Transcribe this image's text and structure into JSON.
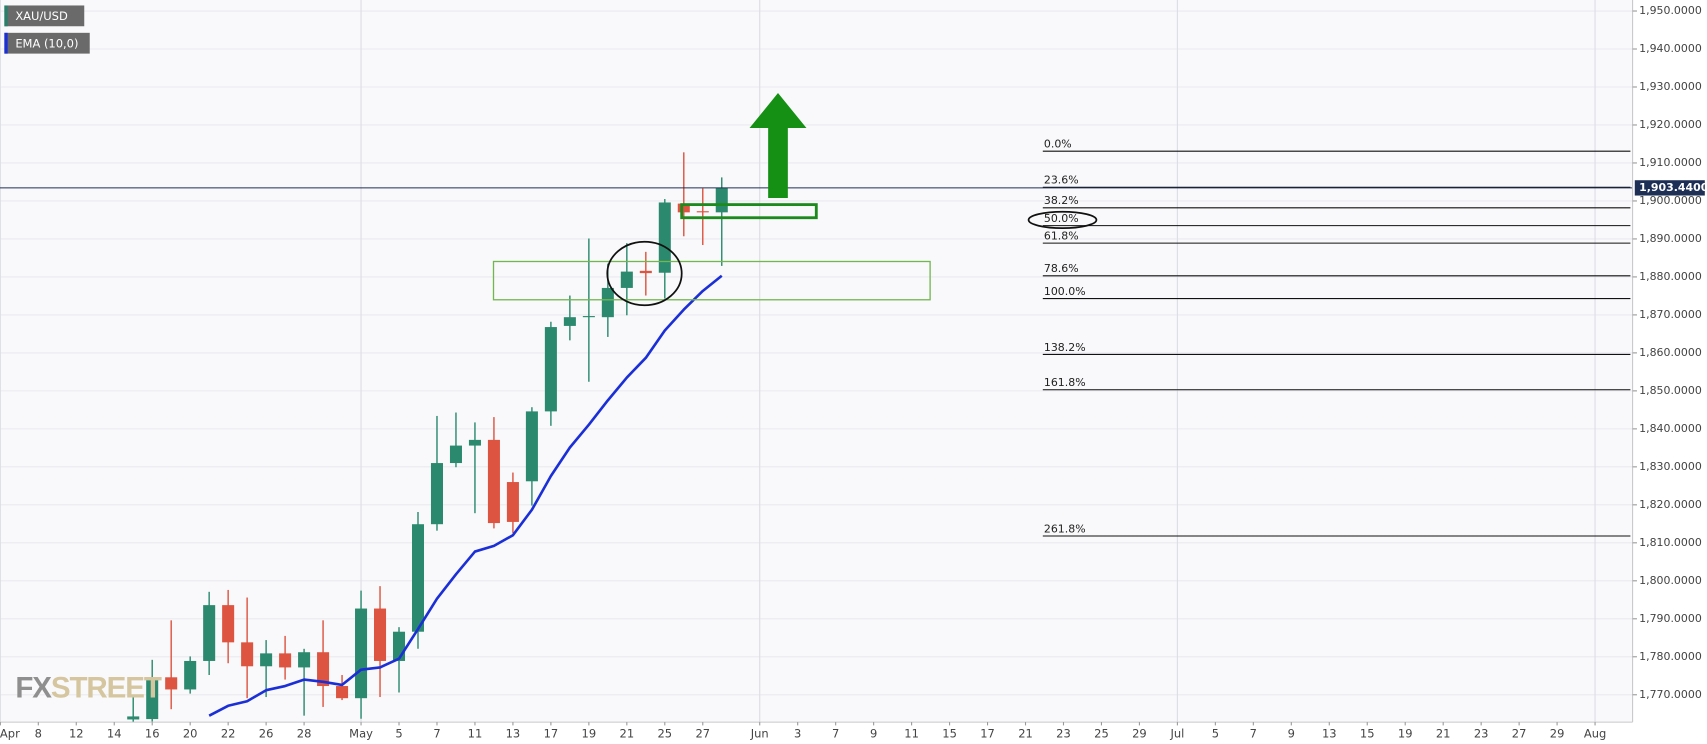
{
  "chart_data": {
    "type": "candlestick",
    "categories": [
      "Apr",
      null,
      "8",
      null,
      "12",
      null,
      "14",
      null,
      "16",
      null,
      "20",
      null,
      "22",
      null,
      "26",
      null,
      "28",
      null,
      null,
      "May",
      null,
      "5",
      null,
      "7",
      null,
      "11",
      null,
      "13",
      null,
      "17",
      null,
      "19",
      null,
      "21",
      null,
      "25",
      null,
      "27",
      null,
      null,
      "Jun",
      null,
      "3",
      null,
      "7",
      null,
      "9",
      null,
      "11",
      null,
      "15",
      null,
      "17",
      null,
      "21",
      null,
      "23",
      null,
      "25",
      null,
      "29",
      null,
      "Jul",
      null,
      "5",
      null,
      "7",
      null,
      "9",
      null,
      "13",
      null,
      "15",
      null,
      "19",
      null,
      "21",
      null,
      "23",
      null,
      "27",
      null,
      "29",
      null,
      "Aug"
    ],
    "series": [
      {
        "name": "XAU/USD",
        "type": "candlestick",
        "color": "#26806a",
        "up_color": "#2b8a6e",
        "down_color": "#dd5440",
        "open": [
          null,
          null,
          null,
          null,
          null,
          null,
          null,
          1763.5,
          1763.6,
          1774.6,
          1771.4,
          1778.9,
          1793.6,
          1783.8,
          1777.5,
          1780.9,
          1777.2,
          1781.2,
          1772.3,
          1769.1,
          1792.7,
          1778.9,
          1786.6,
          1814.9,
          1831.0,
          1835.6,
          1837.1,
          1826.0,
          1826.2,
          1844.6,
          1867.1,
          1869.4,
          1869.4,
          1877.1,
          1881.6,
          1881.1,
          1899.3,
          1897.3,
          1897.0,
          null,
          null,
          null,
          null,
          null,
          null,
          null,
          null,
          null,
          null,
          null,
          null,
          null,
          null,
          null,
          null,
          null,
          null,
          null,
          null,
          null,
          null,
          null,
          null,
          null,
          null,
          null,
          null,
          null,
          null,
          null,
          null,
          null,
          null,
          null,
          null,
          null,
          null,
          null,
          null,
          null,
          null,
          null,
          null,
          null,
          null
        ],
        "high": [
          null,
          null,
          null,
          null,
          null,
          null,
          null,
          1769.6,
          1779.2,
          1789.6,
          1780.1,
          1797.1,
          1797.6,
          1795.6,
          1784.4,
          1785.5,
          1782.1,
          1789.6,
          1775.2,
          1797.4,
          1798.6,
          1787.8,
          1818.1,
          1843.4,
          1844.3,
          1841.7,
          1843.1,
          1828.5,
          1845.7,
          1868.2,
          1875.1,
          1890.1,
          1883.5,
          1888.9,
          1886.6,
          1900.5,
          1912.8,
          1903.3,
          1906.2,
          null,
          null,
          null,
          null,
          null,
          null,
          null,
          null,
          null,
          null,
          null,
          null,
          null,
          null,
          null,
          null,
          null,
          null,
          null,
          null,
          null,
          null,
          null,
          null,
          null,
          null,
          null,
          null,
          null,
          null,
          null,
          null,
          null,
          null,
          null,
          null,
          null,
          null,
          null,
          null,
          null,
          null,
          null,
          null,
          null,
          null
        ],
        "low": [
          null,
          null,
          null,
          null,
          null,
          null,
          null,
          1762.8,
          1762.9,
          1766.2,
          1770.3,
          1775.2,
          1778.3,
          1769.1,
          1769.4,
          1774.0,
          1764.5,
          1766.8,
          1768.6,
          1763.7,
          1769.4,
          1770.6,
          1782.1,
          1813.2,
          1829.9,
          1817.8,
          1813.8,
          1812.6,
          1819.8,
          1840.8,
          1863.3,
          1852.4,
          1864.2,
          1869.9,
          1875.1,
          1874.3,
          1890.7,
          1888.4,
          1882.9,
          null,
          null,
          null,
          null,
          null,
          null,
          null,
          null,
          null,
          null,
          null,
          null,
          null,
          null,
          null,
          null,
          null,
          null,
          null,
          null,
          null,
          null,
          null,
          null,
          null,
          null,
          null,
          null,
          null,
          null,
          null,
          null,
          null,
          null,
          null,
          null,
          null,
          null,
          null,
          null,
          null,
          null,
          null,
          null,
          null,
          null
        ],
        "close": [
          null,
          null,
          null,
          null,
          null,
          null,
          null,
          1764.3,
          1774.6,
          1771.4,
          1778.9,
          1793.6,
          1783.8,
          1777.5,
          1780.9,
          1777.2,
          1781.2,
          1772.3,
          1769.1,
          1792.7,
          1778.9,
          1786.6,
          1814.9,
          1831.0,
          1835.6,
          1837.1,
          1815.2,
          1815.5,
          1844.6,
          1866.8,
          1869.4,
          1869.7,
          1877.1,
          1881.4,
          1881.0,
          1899.6,
          1897.0,
          1897.0,
          1903.44,
          null,
          null,
          null,
          null,
          null,
          null,
          null,
          null,
          null,
          null,
          null,
          null,
          null,
          null,
          null,
          null,
          null,
          null,
          null,
          null,
          null,
          null,
          null,
          null,
          null,
          null,
          null,
          null,
          null,
          null,
          null,
          null,
          null,
          null,
          null,
          null,
          null,
          null,
          null,
          null,
          null,
          null,
          null,
          null,
          null,
          null
        ]
      },
      {
        "name": "EMA (10,0)",
        "type": "line",
        "color": "#1b2fd6",
        "values": [
          null,
          null,
          null,
          null,
          null,
          null,
          null,
          null,
          null,
          null,
          null,
          1764.5,
          1767.1,
          1768.3,
          1771.2,
          1772.3,
          1774.0,
          1773.4,
          1772.6,
          1776.6,
          1777.2,
          1779.5,
          1787.3,
          1795.3,
          1801.7,
          1807.7,
          1809.2,
          1812.0,
          1818.7,
          1827.6,
          1835.1,
          1841.1,
          1847.5,
          1853.5,
          1858.7,
          1865.9,
          1871.4,
          1876.3,
          1880.3,
          null,
          null,
          null,
          null,
          null,
          null,
          null,
          null,
          null,
          null,
          null,
          null,
          null,
          null,
          null,
          null,
          null,
          null,
          null,
          null,
          null,
          null,
          null,
          null,
          null,
          null,
          null,
          null,
          null,
          null,
          null,
          null,
          null,
          null,
          null,
          null,
          null,
          null,
          null,
          null,
          null,
          null,
          null,
          null,
          null,
          null
        ]
      }
    ],
    "ylim": [
      1762.8,
      1952.9
    ],
    "yticks": [
      {
        "value": 1770,
        "label": "1,770.0000"
      },
      {
        "value": 1780,
        "label": "1,780.0000"
      },
      {
        "value": 1790,
        "label": "1,790.0000"
      },
      {
        "value": 1800,
        "label": "1,800.0000"
      },
      {
        "value": 1810,
        "label": "1,810.0000"
      },
      {
        "value": 1820,
        "label": "1,820.0000"
      },
      {
        "value": 1830,
        "label": "1,830.0000"
      },
      {
        "value": 1840,
        "label": "1,840.0000"
      },
      {
        "value": 1850,
        "label": "1,850.0000"
      },
      {
        "value": 1860,
        "label": "1,860.0000"
      },
      {
        "value": 1870,
        "label": "1,870.0000"
      },
      {
        "value": 1880,
        "label": "1,880.0000"
      },
      {
        "value": 1890,
        "label": "1,890.0000"
      },
      {
        "value": 1900,
        "label": "1,900.0000"
      },
      {
        "value": 1910,
        "label": "1,910.0000"
      },
      {
        "value": 1920,
        "label": "1,920.0000"
      },
      {
        "value": 1930,
        "label": "1,930.0000"
      },
      {
        "value": 1940,
        "label": "1,940.0000"
      },
      {
        "value": 1950,
        "label": "1,950.0000"
      }
    ],
    "grid": true,
    "last_price": {
      "value": 1903.44,
      "label": "1,903.4400",
      "color": "#1e2f56"
    },
    "fibonacci": [
      {
        "label": "0.0%",
        "value": 1913.1
      },
      {
        "label": "23.6%",
        "value": 1903.6
      },
      {
        "label": "38.2%",
        "value": 1898.2
      },
      {
        "label": "50.0%",
        "value": 1893.5
      },
      {
        "label": "61.8%",
        "value": 1888.9
      },
      {
        "label": "78.6%",
        "value": 1880.3
      },
      {
        "label": "100.0%",
        "value": 1874.3
      },
      {
        "label": "138.2%",
        "value": 1859.6
      },
      {
        "label": "161.8%",
        "value": 1850.3
      },
      {
        "label": "261.8%",
        "value": 1811.8
      }
    ],
    "watermark": [
      "FX",
      "STREET"
    ]
  }
}
